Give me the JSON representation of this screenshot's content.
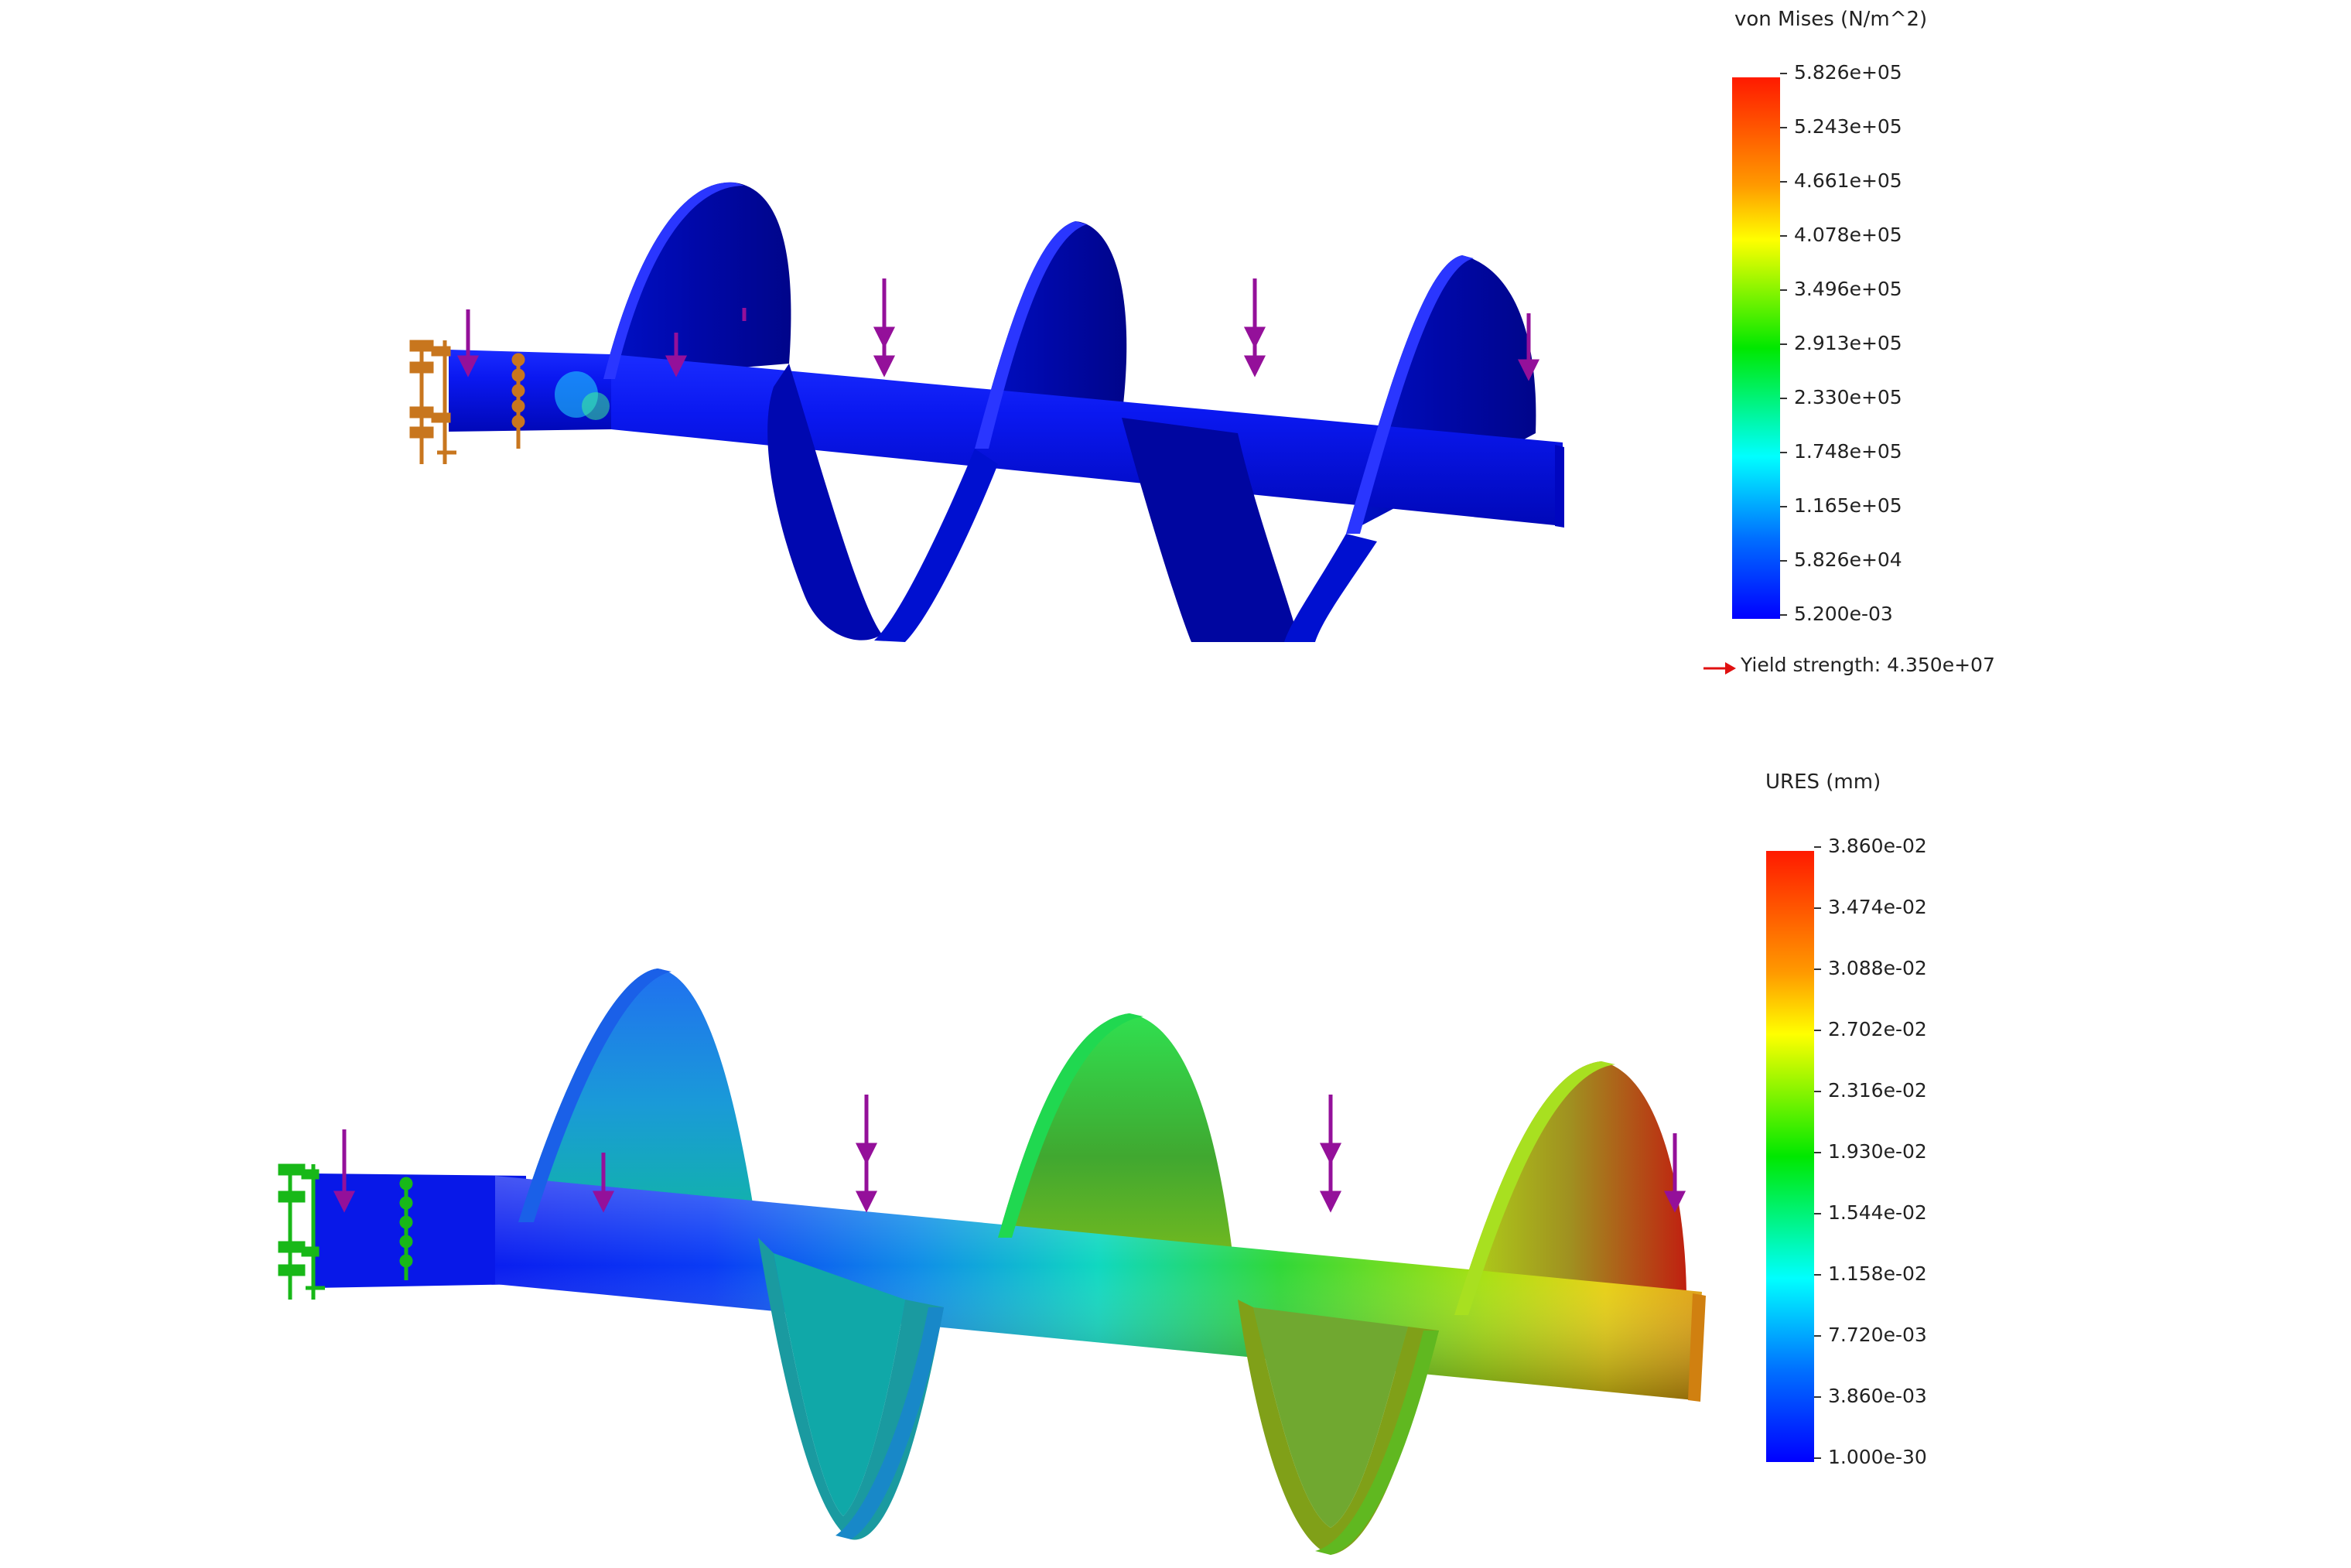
{
  "stress_plot": {
    "legend_title": "von Mises (N/m^2)",
    "ticks": [
      "5.826e+05",
      "5.243e+05",
      "4.661e+05",
      "4.078e+05",
      "3.496e+05",
      "2.913e+05",
      "2.330e+05",
      "1.748e+05",
      "1.165e+05",
      "5.826e+04",
      "5.200e-03"
    ],
    "yield_label": "Yield strength: 4.350e+07",
    "fixture_color": "#c8761e",
    "load_color": "#94109a"
  },
  "displacement_plot": {
    "legend_title": "URES (mm)",
    "ticks": [
      "3.860e-02",
      "3.474e-02",
      "3.088e-02",
      "2.702e-02",
      "2.316e-02",
      "1.930e-02",
      "1.544e-02",
      "1.158e-02",
      "7.720e-03",
      "3.860e-03",
      "1.000e-30"
    ],
    "fixture_color": "#18b818",
    "load_color": "#94109a"
  },
  "colors": {
    "scale": [
      "#ff0000",
      "#ff7f00",
      "#ffff00",
      "#00ff00",
      "#00ffff",
      "#0064ff",
      "#0000ff"
    ],
    "yield_arrow": "#e01010"
  }
}
